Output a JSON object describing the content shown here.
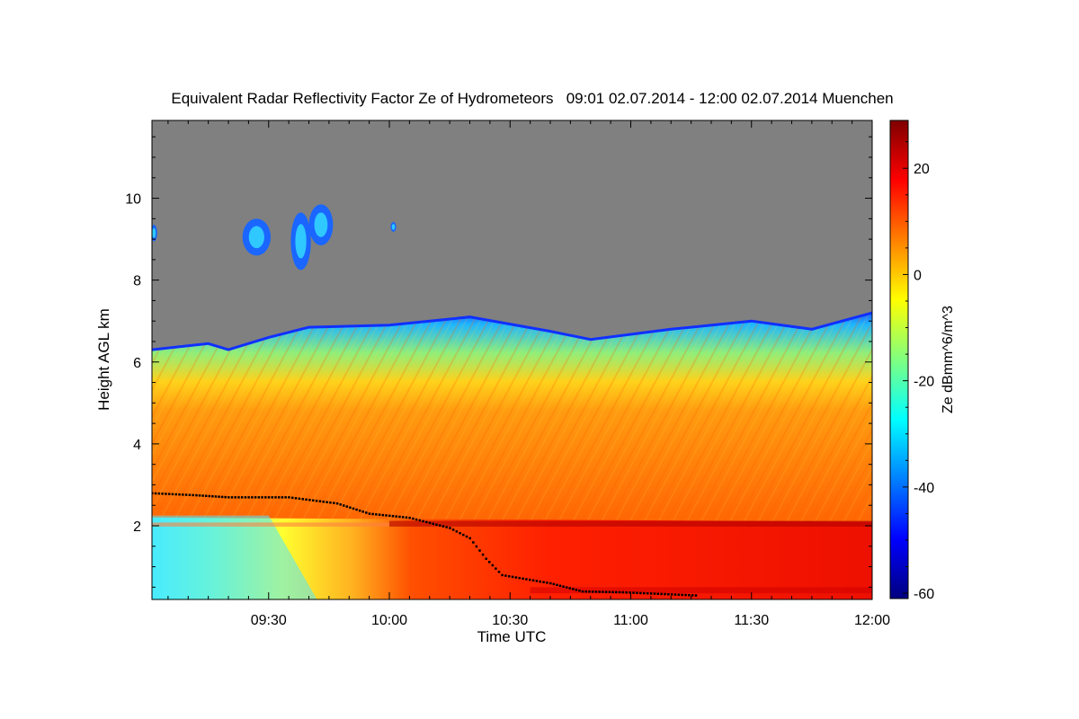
{
  "chart_data": {
    "type": "heatmap",
    "title": "Equivalent Radar Reflectivity Factor Ze of Hydrometeors   09:01 02.07.2014 - 12:00 02.07.2014 Muenchen",
    "xlabel": "Time UTC",
    "ylabel": "Height AGL km",
    "colorbar_label": "Ze dBmm^6/m^3",
    "x_ticks": [
      "09:30",
      "10:00",
      "10:30",
      "11:00",
      "11:30",
      "12:00"
    ],
    "x_tick_minutes": [
      30,
      60,
      90,
      120,
      150,
      180
    ],
    "xlim_minutes": [
      1,
      180
    ],
    "y_ticks": [
      2,
      4,
      6,
      8,
      10
    ],
    "ylim": [
      0.2,
      11.9
    ],
    "colorbar_ticks": [
      20,
      0,
      -20,
      -40,
      -60
    ],
    "colorbar_range": [
      -61,
      29
    ],
    "colormap": [
      "#00007f",
      "#0000ff",
      "#0080ff",
      "#00ffff",
      "#80ff80",
      "#ffff00",
      "#ff8000",
      "#ff0000",
      "#7f0000"
    ],
    "no_signal_color": "#808080",
    "cloud_top_km": [
      {
        "t": 1,
        "h": 6.3
      },
      {
        "t": 15,
        "h": 6.45
      },
      {
        "t": 20,
        "h": 6.3
      },
      {
        "t": 30,
        "h": 6.6
      },
      {
        "t": 40,
        "h": 6.85
      },
      {
        "t": 60,
        "h": 6.9
      },
      {
        "t": 80,
        "h": 7.1
      },
      {
        "t": 100,
        "h": 6.75
      },
      {
        "t": 110,
        "h": 6.55
      },
      {
        "t": 130,
        "h": 6.8
      },
      {
        "t": 150,
        "h": 7.0
      },
      {
        "t": 165,
        "h": 6.8
      },
      {
        "t": 180,
        "h": 7.2
      }
    ],
    "upper_cloud_patches": [
      {
        "t_center": 27,
        "h_center": 9.05,
        "t_halfwidth": 3.5,
        "h_halfheight": 0.45
      },
      {
        "t_center": 38,
        "h_center": 8.95,
        "t_halfwidth": 2.5,
        "h_halfheight": 0.7
      },
      {
        "t_center": 43,
        "h_center": 9.35,
        "t_halfwidth": 3.0,
        "h_halfheight": 0.5
      },
      {
        "t_center": 61,
        "h_center": 9.3,
        "t_halfwidth": 0.7,
        "h_halfheight": 0.12
      },
      {
        "t_center": 1.5,
        "h_center": 9.15,
        "t_halfwidth": 0.8,
        "h_halfheight": 0.2
      }
    ],
    "melting_layer_km": [
      {
        "t": 1,
        "h": 2.8
      },
      {
        "t": 12,
        "h": 2.75
      },
      {
        "t": 20,
        "h": 2.7
      },
      {
        "t": 35,
        "h": 2.7
      },
      {
        "t": 47,
        "h": 2.55
      },
      {
        "t": 55,
        "h": 2.3
      },
      {
        "t": 65,
        "h": 2.2
      },
      {
        "t": 75,
        "h": 1.95
      },
      {
        "t": 80,
        "h": 1.7
      },
      {
        "t": 84,
        "h": 1.2
      },
      {
        "t": 88,
        "h": 0.8
      },
      {
        "t": 100,
        "h": 0.6
      },
      {
        "t": 108,
        "h": 0.4
      },
      {
        "t": 118,
        "h": 0.38
      },
      {
        "t": 125,
        "h": 0.35
      },
      {
        "t": 137,
        "h": 0.3
      }
    ]
  }
}
